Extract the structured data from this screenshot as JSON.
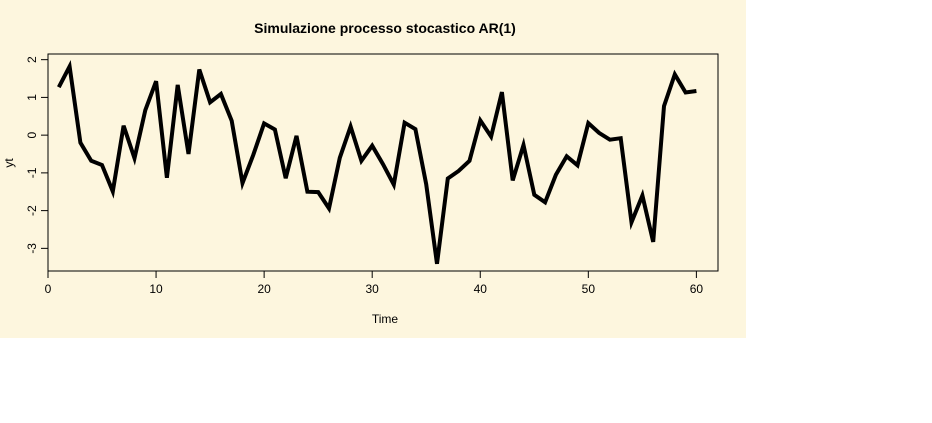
{
  "colors": {
    "background": "#fdf6de",
    "page": "#ffffff",
    "line": "#000000",
    "axis": "#000000"
  },
  "chart_data": {
    "type": "line",
    "title": "Simulazione processo stocastico AR(1)",
    "xlabel": "Time",
    "ylabel": "yt",
    "xlim": [
      0,
      62
    ],
    "ylim": [
      -3.6,
      2.15
    ],
    "x_ticks": [
      0,
      10,
      20,
      30,
      40,
      50,
      60
    ],
    "y_ticks": [
      -3,
      -2,
      -1,
      0,
      1,
      2
    ],
    "grid": false,
    "legend": "none",
    "series": [
      {
        "x": [
          1,
          2,
          3,
          4,
          5,
          6,
          7,
          8,
          9,
          10,
          11,
          12,
          13,
          14,
          15,
          16,
          17,
          18,
          19,
          20,
          21,
          22,
          23,
          24,
          25,
          26,
          27,
          28,
          29,
          30,
          31,
          32,
          33,
          34,
          35,
          36,
          37,
          38,
          39,
          40,
          41,
          42,
          43,
          44,
          45,
          46,
          47,
          48,
          49,
          50,
          51,
          52,
          53,
          54,
          55,
          56,
          57,
          58,
          59,
          60
        ],
        "values": [
          1.27,
          1.82,
          -0.2,
          -0.68,
          -0.79,
          -1.49,
          0.25,
          -0.61,
          0.66,
          1.43,
          -1.13,
          1.33,
          -0.5,
          1.74,
          0.87,
          1.09,
          0.38,
          -1.27,
          -0.52,
          0.31,
          0.15,
          -1.14,
          -0.02,
          -1.5,
          -1.51,
          -1.94,
          -0.6,
          0.23,
          -0.68,
          -0.28,
          -0.77,
          -1.31,
          0.33,
          0.16,
          -1.3,
          -3.41,
          -1.15,
          -0.95,
          -0.68,
          0.39,
          -0.04,
          1.14,
          -1.2,
          -0.26,
          -1.58,
          -1.78,
          -1.05,
          -0.56,
          -0.8,
          0.32,
          0.06,
          -0.12,
          -0.08,
          -2.31,
          -1.6,
          -2.83,
          0.77,
          1.61,
          1.13,
          1.17
        ]
      }
    ]
  }
}
